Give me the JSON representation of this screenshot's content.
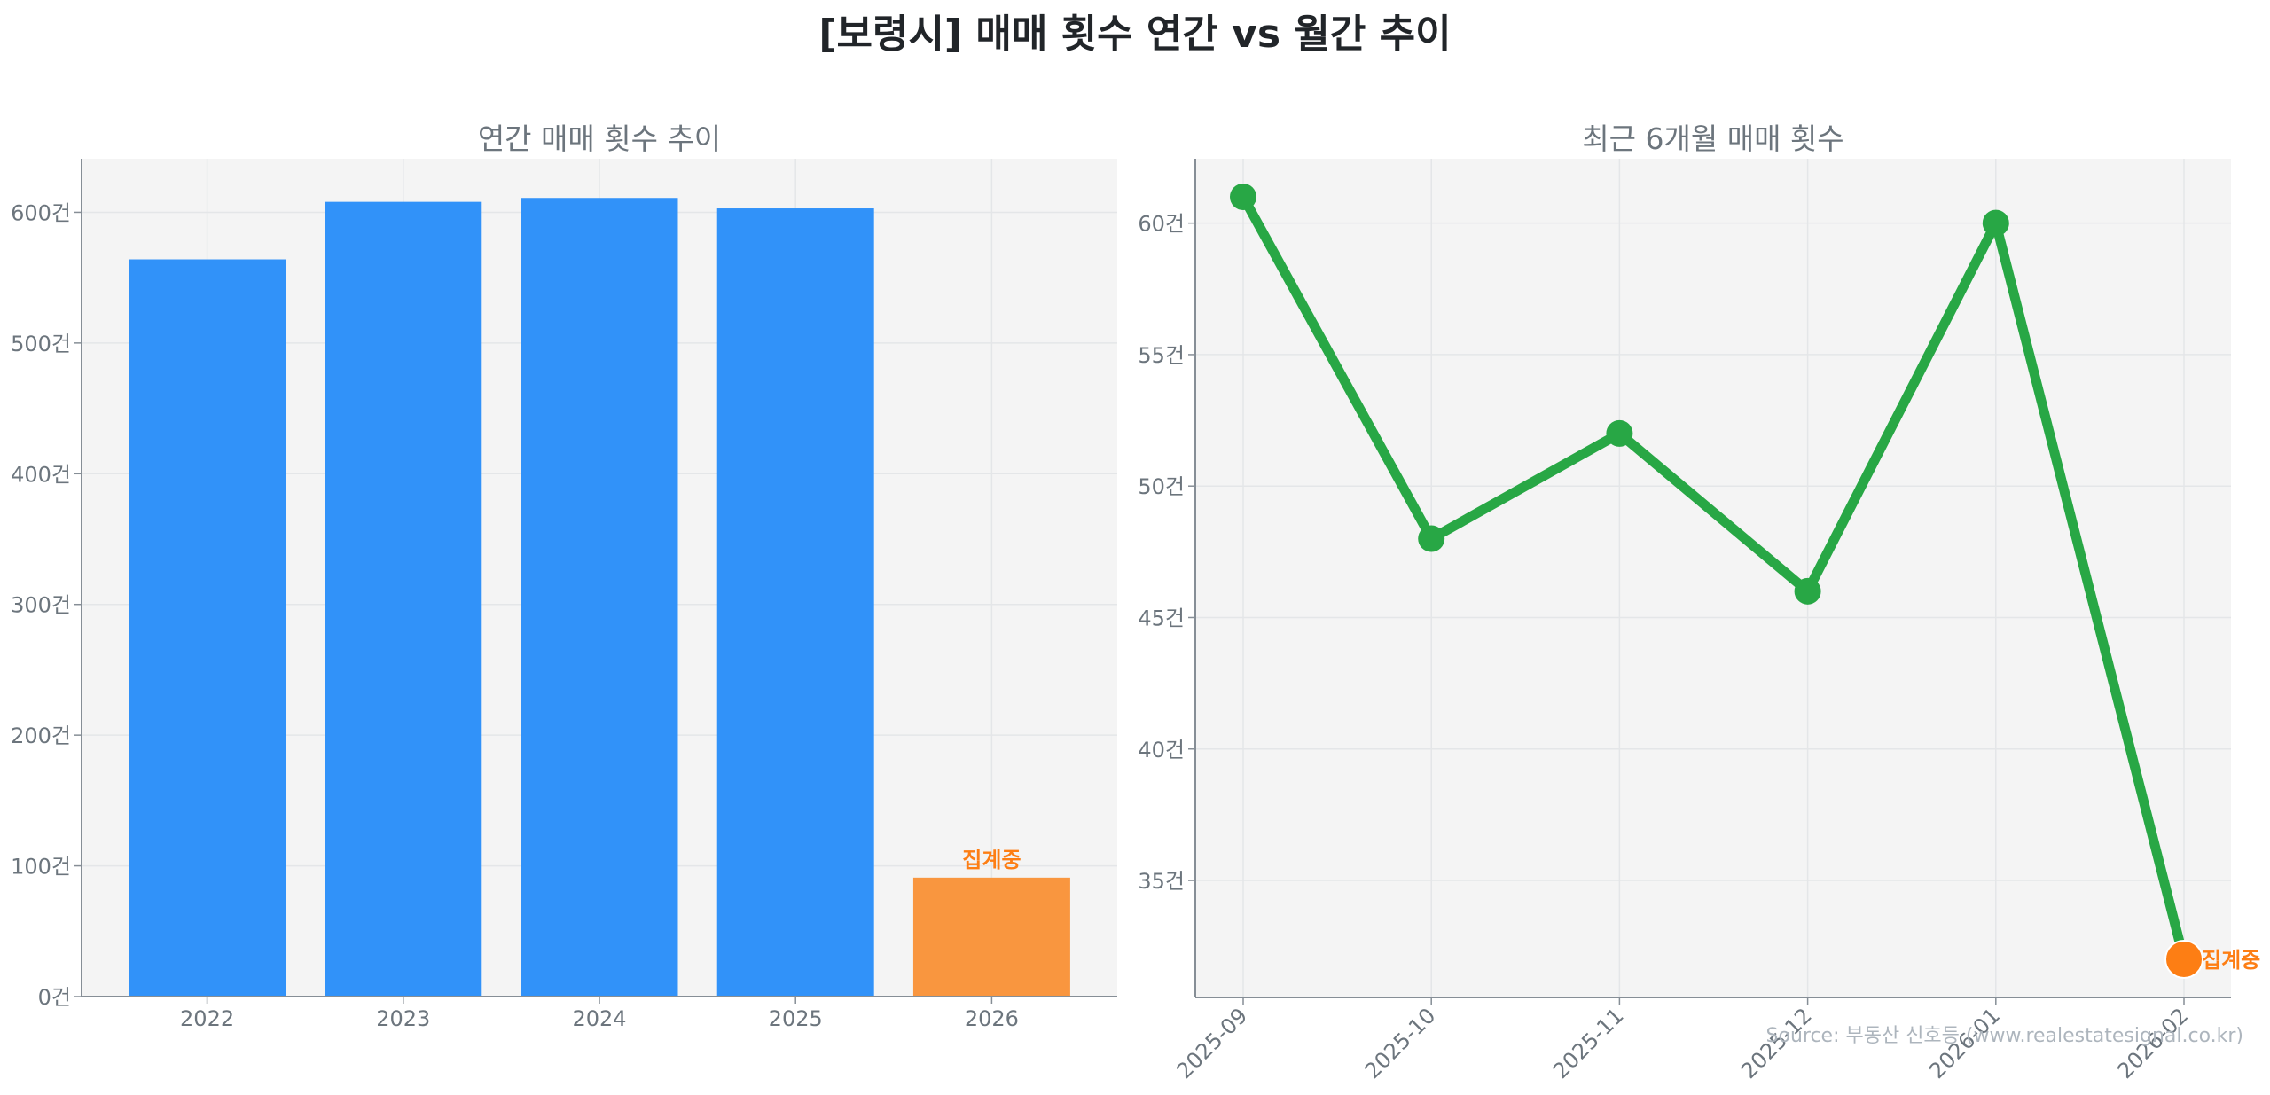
{
  "figure": {
    "title": "[보령시] 매매 횟수 연간 vs 월간 추이",
    "source": "Source: 부동산 신호등 (www.realestatesignal.co.kr)"
  },
  "colors": {
    "bar": "#3192F9",
    "bar_partial": "#F9963F",
    "line": "#28A745",
    "marker_partial": "#FD7E14",
    "partial_label": "#FD7E14",
    "plot_bg": "#F4F4F4",
    "grid": "#E4E6E8",
    "axis": "#868E96",
    "text": "#6c757d",
    "title": "#212529"
  },
  "chart_data": [
    {
      "type": "bar",
      "title": "연간 매매 횟수 추이",
      "xlabel": "",
      "ylabel": "",
      "categories": [
        "2022",
        "2023",
        "2024",
        "2025",
        "2026"
      ],
      "values": [
        564,
        608,
        611,
        603,
        91
      ],
      "partial_index": 4,
      "annotation": "집계중",
      "yticks": [
        0,
        100,
        200,
        300,
        400,
        500,
        600
      ],
      "ytick_labels": [
        "0건",
        "100건",
        "200건",
        "300건",
        "400건",
        "500건",
        "600건"
      ],
      "ylim": [
        0,
        641
      ],
      "grid": true,
      "legend": null
    },
    {
      "type": "line",
      "title": "최근 6개월 매매 횟수",
      "xlabel": "",
      "ylabel": "",
      "categories": [
        "2025-09",
        "2025-10",
        "2025-11",
        "2025-12",
        "2026-01",
        "2026-02"
      ],
      "values": [
        61,
        48,
        52,
        46,
        60,
        32
      ],
      "partial_index": 5,
      "annotation": "집계중",
      "yticks": [
        35,
        40,
        45,
        50,
        55,
        60
      ],
      "ytick_labels": [
        "35건",
        "40건",
        "45건",
        "50건",
        "55건",
        "60건"
      ],
      "ylim": [
        30.55,
        62.45
      ],
      "xtick_rotation": 45,
      "grid": true,
      "legend": null
    }
  ]
}
